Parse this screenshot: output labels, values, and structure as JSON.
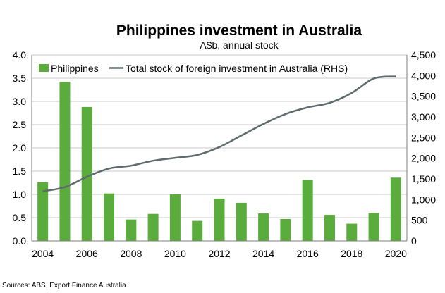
{
  "chart_data": {
    "type": "bar",
    "title": "Philippines investment in Australia",
    "subtitle": "A$b, annual stock",
    "source": "Sources: ABS, Export Finance Australia",
    "x_tick_labels": [
      "2004",
      "2006",
      "2008",
      "2010",
      "2012",
      "2014",
      "2016",
      "2018",
      "2020"
    ],
    "y_left_ticks": [
      "0.0",
      "0.5",
      "1.0",
      "1.5",
      "2.0",
      "2.5",
      "3.0",
      "3.5",
      "4.0"
    ],
    "y_right_ticks": [
      "0",
      "500",
      "1,000",
      "1,500",
      "2,000",
      "2,500",
      "3,000",
      "3,500",
      "4,000",
      "4,500"
    ],
    "ylim_left": [
      0,
      4.0
    ],
    "ylim_right": [
      0,
      4500
    ],
    "grid": true,
    "legend_position": "top",
    "colors": {
      "bar": "#5aad3c",
      "line": "#5f6b6d",
      "grid": "#c8c8c8",
      "axis": "#7f7f7f"
    },
    "series": [
      {
        "name": "Philippines",
        "type": "bar",
        "axis": "left",
        "x": [
          2004,
          2005,
          2006,
          2007,
          2008,
          2009,
          2010,
          2011,
          2012,
          2013,
          2014,
          2015,
          2016,
          2017,
          2018,
          2019,
          2020
        ],
        "values": [
          1.26,
          3.42,
          2.88,
          1.02,
          0.46,
          0.58,
          1.0,
          0.43,
          0.91,
          0.82,
          0.59,
          0.47,
          1.31,
          0.56,
          0.37,
          0.6,
          1.36
        ]
      },
      {
        "name": "Total stock of foreign investment in Australia (RHS)",
        "type": "line",
        "axis": "right",
        "x": [
          2004,
          2005,
          2006,
          2007,
          2008,
          2009,
          2010,
          2011,
          2012,
          2013,
          2014,
          2015,
          2016,
          2017,
          2018,
          2019,
          2020
        ],
        "values": [
          1200,
          1300,
          1550,
          1750,
          1820,
          1940,
          2010,
          2080,
          2270,
          2550,
          2830,
          3070,
          3230,
          3340,
          3580,
          3930,
          3980
        ]
      }
    ]
  }
}
